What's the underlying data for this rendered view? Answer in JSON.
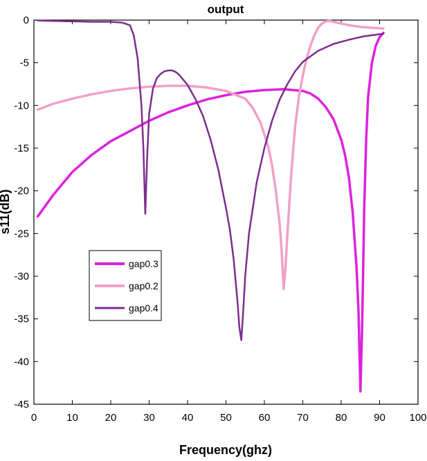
{
  "chart_data": {
    "type": "line",
    "title": "output",
    "xlabel": "Frequency(ghz)",
    "ylabel": "s11(dB)",
    "xlim": [
      0,
      100
    ],
    "ylim": [
      -45,
      0
    ],
    "xticks": [
      0,
      10,
      20,
      30,
      40,
      50,
      60,
      70,
      80,
      90,
      100
    ],
    "yticks": [
      0,
      -5,
      -10,
      -15,
      -20,
      -25,
      -30,
      -35,
      -40,
      -45
    ],
    "grid": false,
    "legend_position": "middle-left",
    "series": [
      {
        "name": "gap0.3",
        "color": "#dd22dd",
        "x": [
          1,
          5,
          10,
          15,
          20,
          25,
          30,
          35,
          40,
          45,
          50,
          55,
          60,
          65,
          70,
          72,
          74,
          76,
          78,
          80,
          81,
          82,
          83,
          84,
          84.5,
          85,
          85.5,
          86,
          86.5,
          87,
          88,
          89,
          90,
          91
        ],
        "y": [
          -23,
          -20.5,
          -17.8,
          -15.8,
          -14.2,
          -13,
          -11.8,
          -10.8,
          -10,
          -9.3,
          -8.8,
          -8.4,
          -8.2,
          -8.1,
          -8.3,
          -8.6,
          -9.2,
          -10.2,
          -11.6,
          -14,
          -15.8,
          -18.4,
          -22.5,
          -29,
          -34,
          -43.5,
          -35,
          -22,
          -14,
          -9,
          -5,
          -3,
          -2,
          -1.5
        ]
      },
      {
        "name": "gap0.2",
        "color": "#f0a0c8",
        "x": [
          1,
          5,
          10,
          15,
          20,
          25,
          30,
          35,
          40,
          45,
          50,
          55,
          57,
          59,
          61,
          62,
          63,
          64,
          64.5,
          65,
          65.5,
          66,
          67,
          68,
          69,
          70,
          71,
          72,
          73,
          74,
          75,
          76,
          77,
          78,
          80,
          82,
          85,
          88,
          91
        ],
        "y": [
          -10.5,
          -9.8,
          -9.2,
          -8.7,
          -8.3,
          -8,
          -7.8,
          -7.7,
          -7.7,
          -7.9,
          -8.3,
          -9.2,
          -10.3,
          -12,
          -14.8,
          -17,
          -20,
          -24,
          -27,
          -31.5,
          -29,
          -25,
          -18,
          -12.5,
          -9,
          -6.5,
          -4.5,
          -3,
          -1.8,
          -0.9,
          -0.4,
          -0.15,
          -0.1,
          -0.2,
          -0.4,
          -0.6,
          -0.8,
          -0.9,
          -1
        ]
      },
      {
        "name": "gap0.4",
        "color": "#7b2d8e",
        "x": [
          1,
          5,
          10,
          15,
          20,
          23,
          25,
          26,
          27,
          28,
          28.5,
          29,
          29.5,
          30,
          31,
          32,
          33,
          34,
          35,
          36,
          37,
          38,
          40,
          42,
          44,
          46,
          48,
          50,
          51,
          52,
          53,
          53.5,
          54,
          54.5,
          55,
          56,
          58,
          60,
          62,
          64,
          66,
          68,
          70,
          74,
          78,
          82,
          86,
          91
        ],
        "y": [
          -0.05,
          -0.1,
          -0.15,
          -0.2,
          -0.2,
          -0.3,
          -0.6,
          -1.8,
          -4.5,
          -10,
          -15,
          -22.7,
          -16,
          -11,
          -8,
          -6.8,
          -6.3,
          -6,
          -5.9,
          -5.9,
          -6.1,
          -6.5,
          -7.6,
          -9.2,
          -11.2,
          -14,
          -17.5,
          -22,
          -24.5,
          -28,
          -33,
          -36,
          -37.5,
          -34,
          -30,
          -25,
          -19,
          -15,
          -11.8,
          -9.3,
          -7.5,
          -6,
          -4.9,
          -3.6,
          -2.8,
          -2.3,
          -1.9,
          -1.6
        ]
      }
    ]
  }
}
